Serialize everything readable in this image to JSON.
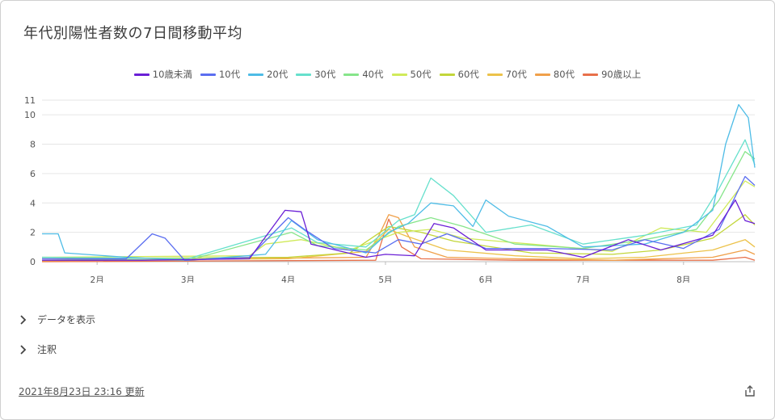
{
  "header": {
    "title": "年代別陽性者数の7日間移動平均"
  },
  "actions": {
    "show_data": "データを表示",
    "notes": "注釈"
  },
  "footer": {
    "updated": "2021年8月23日 23:16 更新",
    "share_icon": "share-icon"
  },
  "icons": {
    "toggle": "chevron-right-icon"
  },
  "chart_data": {
    "type": "line",
    "x_start": "2021-01-15",
    "x_end": "2021-08-23",
    "xticks": [
      {
        "date": "2021-02-01",
        "label": "2月"
      },
      {
        "date": "2021-03-01",
        "label": "3月"
      },
      {
        "date": "2021-04-01",
        "label": "4月"
      },
      {
        "date": "2021-05-01",
        "label": "5月"
      },
      {
        "date": "2021-06-01",
        "label": "6月"
      },
      {
        "date": "2021-07-01",
        "label": "7月"
      },
      {
        "date": "2021-08-01",
        "label": "8月"
      }
    ],
    "yticks": [
      0,
      2,
      4,
      6,
      8,
      10,
      11
    ],
    "ylim": [
      0,
      11
    ],
    "grid": true,
    "legend_position": "top",
    "series": [
      {
        "name": "10歳未満",
        "color": "#6a1fd6",
        "points": [
          [
            "2021-01-15",
            0.1
          ],
          [
            "2021-02-15",
            0.1
          ],
          [
            "2021-03-20",
            0.2
          ],
          [
            "2021-03-31",
            3.5
          ],
          [
            "2021-04-05",
            3.4
          ],
          [
            "2021-04-08",
            1.2
          ],
          [
            "2021-04-25",
            0.3
          ],
          [
            "2021-05-01",
            0.5
          ],
          [
            "2021-05-10",
            0.4
          ],
          [
            "2021-05-16",
            2.6
          ],
          [
            "2021-05-22",
            2.3
          ],
          [
            "2021-06-01",
            0.8
          ],
          [
            "2021-06-20",
            0.8
          ],
          [
            "2021-07-01",
            0.3
          ],
          [
            "2021-07-15",
            1.5
          ],
          [
            "2021-07-25",
            0.8
          ],
          [
            "2021-08-10",
            1.8
          ],
          [
            "2021-08-17",
            4.2
          ],
          [
            "2021-08-20",
            2.8
          ],
          [
            "2021-08-23",
            2.6
          ]
        ]
      },
      {
        "name": "10代",
        "color": "#5b6ef0",
        "points": [
          [
            "2021-01-15",
            0.2
          ],
          [
            "2021-02-10",
            0.2
          ],
          [
            "2021-02-18",
            1.9
          ],
          [
            "2021-02-22",
            1.6
          ],
          [
            "2021-02-28",
            0.1
          ],
          [
            "2021-03-20",
            0.3
          ],
          [
            "2021-04-01",
            3.0
          ],
          [
            "2021-04-06",
            2.2
          ],
          [
            "2021-04-15",
            0.9
          ],
          [
            "2021-04-28",
            0.6
          ],
          [
            "2021-05-05",
            1.5
          ],
          [
            "2021-05-12",
            1.2
          ],
          [
            "2021-05-20",
            1.9
          ],
          [
            "2021-06-01",
            0.9
          ],
          [
            "2021-06-20",
            0.9
          ],
          [
            "2021-07-10",
            0.8
          ],
          [
            "2021-07-20",
            1.5
          ],
          [
            "2021-08-01",
            0.9
          ],
          [
            "2021-08-12",
            2.2
          ],
          [
            "2021-08-20",
            5.8
          ],
          [
            "2021-08-23",
            5.2
          ]
        ]
      },
      {
        "name": "20代",
        "color": "#4ebce6",
        "points": [
          [
            "2021-01-15",
            1.9
          ],
          [
            "2021-01-20",
            1.9
          ],
          [
            "2021-01-22",
            0.6
          ],
          [
            "2021-02-10",
            0.3
          ],
          [
            "2021-03-01",
            0.1
          ],
          [
            "2021-03-25",
            0.5
          ],
          [
            "2021-04-02",
            2.8
          ],
          [
            "2021-04-10",
            1.5
          ],
          [
            "2021-04-25",
            0.6
          ],
          [
            "2021-05-02",
            2.0
          ],
          [
            "2021-05-08",
            2.6
          ],
          [
            "2021-05-15",
            4.0
          ],
          [
            "2021-05-22",
            3.8
          ],
          [
            "2021-05-28",
            2.4
          ],
          [
            "2021-06-01",
            4.2
          ],
          [
            "2021-06-08",
            3.1
          ],
          [
            "2021-06-20",
            2.4
          ],
          [
            "2021-07-01",
            1.0
          ],
          [
            "2021-07-20",
            1.2
          ],
          [
            "2021-08-01",
            2.0
          ],
          [
            "2021-08-10",
            3.5
          ],
          [
            "2021-08-14",
            8.0
          ],
          [
            "2021-08-18",
            10.7
          ],
          [
            "2021-08-21",
            9.8
          ],
          [
            "2021-08-23",
            6.4
          ]
        ]
      },
      {
        "name": "30代",
        "color": "#66e0cc",
        "points": [
          [
            "2021-01-15",
            0.3
          ],
          [
            "2021-03-01",
            0.2
          ],
          [
            "2021-04-02",
            2.3
          ],
          [
            "2021-04-10",
            1.3
          ],
          [
            "2021-04-25",
            1.0
          ],
          [
            "2021-05-05",
            2.8
          ],
          [
            "2021-05-10",
            3.2
          ],
          [
            "2021-05-15",
            5.7
          ],
          [
            "2021-05-22",
            4.5
          ],
          [
            "2021-06-01",
            2.0
          ],
          [
            "2021-06-15",
            2.5
          ],
          [
            "2021-07-01",
            1.2
          ],
          [
            "2021-07-20",
            1.8
          ],
          [
            "2021-08-05",
            2.5
          ],
          [
            "2021-08-12",
            5.0
          ],
          [
            "2021-08-20",
            8.3
          ],
          [
            "2021-08-23",
            6.6
          ]
        ]
      },
      {
        "name": "40代",
        "color": "#86e58a",
        "points": [
          [
            "2021-01-15",
            0.2
          ],
          [
            "2021-03-01",
            0.1
          ],
          [
            "2021-04-02",
            2.0
          ],
          [
            "2021-04-10",
            1.1
          ],
          [
            "2021-04-25",
            0.8
          ],
          [
            "2021-05-05",
            2.4
          ],
          [
            "2021-05-15",
            3.0
          ],
          [
            "2021-05-25",
            2.4
          ],
          [
            "2021-06-10",
            1.2
          ],
          [
            "2021-07-01",
            0.9
          ],
          [
            "2021-07-20",
            1.5
          ],
          [
            "2021-08-05",
            2.2
          ],
          [
            "2021-08-12",
            4.2
          ],
          [
            "2021-08-20",
            7.5
          ],
          [
            "2021-08-23",
            7.0
          ]
        ]
      },
      {
        "name": "50代",
        "color": "#d0ea5a",
        "points": [
          [
            "2021-01-15",
            0.3
          ],
          [
            "2021-03-20",
            0.4
          ],
          [
            "2021-03-25",
            1.2
          ],
          [
            "2021-04-05",
            1.5
          ],
          [
            "2021-04-20",
            0.8
          ],
          [
            "2021-05-05",
            2.0
          ],
          [
            "2021-05-15",
            2.2
          ],
          [
            "2021-05-25",
            1.6
          ],
          [
            "2021-06-15",
            1.2
          ],
          [
            "2021-07-10",
            0.7
          ],
          [
            "2021-07-25",
            2.3
          ],
          [
            "2021-08-08",
            2.0
          ],
          [
            "2021-08-20",
            5.5
          ],
          [
            "2021-08-23",
            5.1
          ]
        ]
      },
      {
        "name": "60代",
        "color": "#c2d63a",
        "points": [
          [
            "2021-01-15",
            0.2
          ],
          [
            "2021-04-01",
            0.3
          ],
          [
            "2021-04-20",
            0.6
          ],
          [
            "2021-05-02",
            2.4
          ],
          [
            "2021-05-12",
            2.0
          ],
          [
            "2021-05-22",
            1.4
          ],
          [
            "2021-06-15",
            0.6
          ],
          [
            "2021-07-10",
            0.5
          ],
          [
            "2021-07-25",
            0.8
          ],
          [
            "2021-08-10",
            1.6
          ],
          [
            "2021-08-20",
            3.2
          ],
          [
            "2021-08-23",
            2.5
          ]
        ]
      },
      {
        "name": "70代",
        "color": "#ecc24a",
        "points": [
          [
            "2021-01-15",
            0.1
          ],
          [
            "2021-04-01",
            0.2
          ],
          [
            "2021-04-25",
            0.7
          ],
          [
            "2021-05-02",
            2.2
          ],
          [
            "2021-05-08",
            1.7
          ],
          [
            "2021-05-20",
            0.8
          ],
          [
            "2021-06-10",
            0.4
          ],
          [
            "2021-07-01",
            0.2
          ],
          [
            "2021-07-20",
            0.3
          ],
          [
            "2021-08-10",
            0.8
          ],
          [
            "2021-08-20",
            1.5
          ],
          [
            "2021-08-23",
            1.0
          ]
        ]
      },
      {
        "name": "80代",
        "color": "#f0a04a",
        "points": [
          [
            "2021-01-15",
            0.05
          ],
          [
            "2021-04-25",
            0.3
          ],
          [
            "2021-04-29",
            1.8
          ],
          [
            "2021-05-02",
            3.2
          ],
          [
            "2021-05-05",
            3.0
          ],
          [
            "2021-05-10",
            1.0
          ],
          [
            "2021-05-20",
            0.3
          ],
          [
            "2021-06-10",
            0.2
          ],
          [
            "2021-07-10",
            0.1
          ],
          [
            "2021-08-10",
            0.3
          ],
          [
            "2021-08-20",
            0.8
          ],
          [
            "2021-08-23",
            0.5
          ]
        ]
      },
      {
        "name": "90歳以上",
        "color": "#e8704a",
        "points": [
          [
            "2021-01-15",
            0.0
          ],
          [
            "2021-04-28",
            0.1
          ],
          [
            "2021-05-02",
            2.9
          ],
          [
            "2021-05-06",
            1.0
          ],
          [
            "2021-05-12",
            0.2
          ],
          [
            "2021-06-10",
            0.1
          ],
          [
            "2021-08-10",
            0.1
          ],
          [
            "2021-08-20",
            0.3
          ],
          [
            "2021-08-23",
            0.1
          ]
        ]
      }
    ]
  }
}
